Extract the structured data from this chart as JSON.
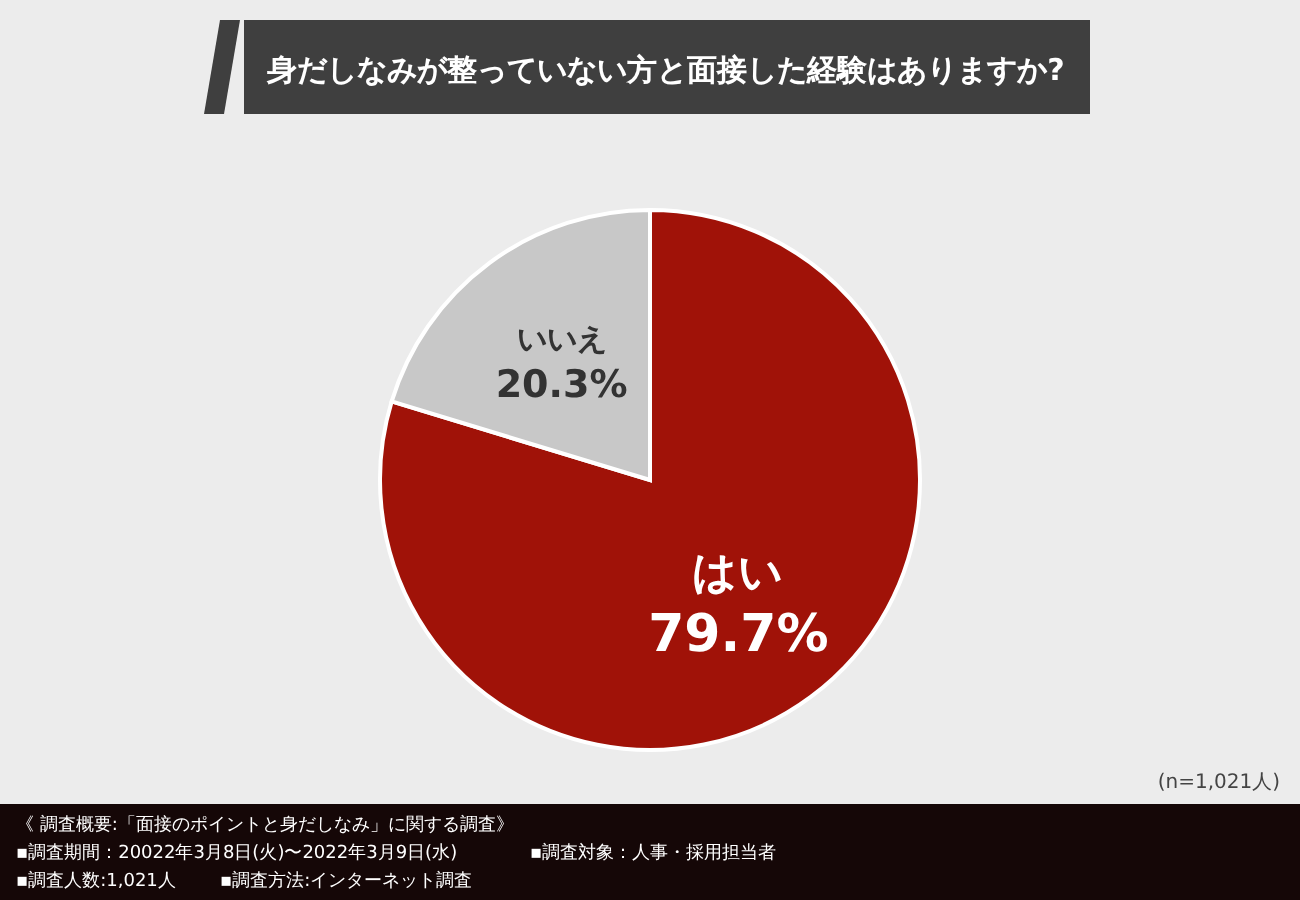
{
  "chart_data": {
    "type": "pie",
    "title": "身だしなみが整っていない方と面接した経験はありますか?",
    "categories": [
      "はい",
      "いいえ"
    ],
    "values": [
      79.7,
      20.3
    ],
    "colors": [
      "#a01208",
      "#c8c8c8"
    ],
    "value_labels": [
      "79.7%",
      "20.3%"
    ],
    "annotations": [
      "(n=1,021人)",
      "《 調査概要:「面接のポイントと身だしなみ」に関する調査》",
      "▪調査期間：20022年3月8日(火)〜2022年3月9日(水)",
      "▪調査対象：人事・採用担当者",
      "▪調査人数:1,021人",
      "▪調査方法:インターネット調査"
    ]
  }
}
